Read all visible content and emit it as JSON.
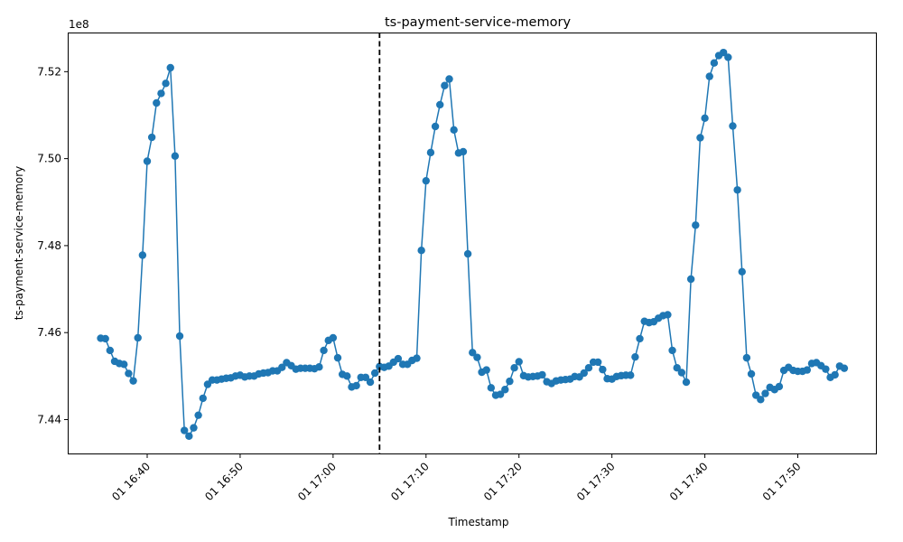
{
  "chart_data": {
    "type": "line",
    "title": "ts-payment-service-memory",
    "xlabel": "Timestamp",
    "ylabel": "ts-payment-service-memory",
    "y_offset_label": "1e8",
    "y_unit_scale": 100000000,
    "ylim": [
      7.432,
      7.529
    ],
    "xlim": [
      "2000-01-01T16:31:27",
      "2000-01-01T17:58:30"
    ],
    "y_ticks": [
      7.44,
      7.46,
      7.48,
      7.5,
      7.52
    ],
    "y_tick_labels": [
      "7.44",
      "7.46",
      "7.48",
      "7.50",
      "7.52"
    ],
    "x_ticks": [
      "2000-01-01T16:40:00",
      "2000-01-01T16:50:00",
      "2000-01-01T17:00:00",
      "2000-01-01T17:10:00",
      "2000-01-01T17:20:00",
      "2000-01-01T17:30:00",
      "2000-01-01T17:40:00",
      "2000-01-01T17:50:00"
    ],
    "x_tick_labels": [
      "01 16:40",
      "01 16:50",
      "01 17:00",
      "01 17:10",
      "01 17:20",
      "01 17:30",
      "01 17:40",
      "01 17:50"
    ],
    "vline": {
      "x": "2000-01-01T17:05:00",
      "style": "dashed",
      "color": "#000000"
    },
    "series": [
      {
        "color": "#1f77b4",
        "marker": "circle",
        "x": [
          "2000-01-01T16:35:00",
          "2000-01-01T16:35:30",
          "2000-01-01T16:36:00",
          "2000-01-01T16:36:30",
          "2000-01-01T16:37:00",
          "2000-01-01T16:37:30",
          "2000-01-01T16:38:00",
          "2000-01-01T16:38:30",
          "2000-01-01T16:39:00",
          "2000-01-01T16:39:30",
          "2000-01-01T16:40:00",
          "2000-01-01T16:40:30",
          "2000-01-01T16:41:00",
          "2000-01-01T16:41:30",
          "2000-01-01T16:42:00",
          "2000-01-01T16:42:30",
          "2000-01-01T16:43:00",
          "2000-01-01T16:43:30",
          "2000-01-01T16:44:00",
          "2000-01-01T16:44:30",
          "2000-01-01T16:45:00",
          "2000-01-01T16:45:30",
          "2000-01-01T16:46:00",
          "2000-01-01T16:46:30",
          "2000-01-01T16:47:00",
          "2000-01-01T16:47:30",
          "2000-01-01T16:48:00",
          "2000-01-01T16:48:30",
          "2000-01-01T16:49:00",
          "2000-01-01T16:49:30",
          "2000-01-01T16:50:00",
          "2000-01-01T16:50:30",
          "2000-01-01T16:51:00",
          "2000-01-01T16:51:30",
          "2000-01-01T16:52:00",
          "2000-01-01T16:52:30",
          "2000-01-01T16:53:00",
          "2000-01-01T16:53:30",
          "2000-01-01T16:54:00",
          "2000-01-01T16:54:30",
          "2000-01-01T16:55:00",
          "2000-01-01T16:55:30",
          "2000-01-01T16:56:00",
          "2000-01-01T16:56:30",
          "2000-01-01T16:57:00",
          "2000-01-01T16:57:30",
          "2000-01-01T16:58:00",
          "2000-01-01T16:58:30",
          "2000-01-01T16:59:00",
          "2000-01-01T16:59:30",
          "2000-01-01T17:00:00",
          "2000-01-01T17:00:30",
          "2000-01-01T17:01:00",
          "2000-01-01T17:01:30",
          "2000-01-01T17:02:00",
          "2000-01-01T17:02:30",
          "2000-01-01T17:03:00",
          "2000-01-01T17:03:30",
          "2000-01-01T17:04:00",
          "2000-01-01T17:04:30",
          "2000-01-01T17:05:00",
          "2000-01-01T17:05:30",
          "2000-01-01T17:06:00",
          "2000-01-01T17:06:30",
          "2000-01-01T17:07:00",
          "2000-01-01T17:07:30",
          "2000-01-01T17:08:00",
          "2000-01-01T17:08:30",
          "2000-01-01T17:09:00",
          "2000-01-01T17:09:30",
          "2000-01-01T17:10:00",
          "2000-01-01T17:10:30",
          "2000-01-01T17:11:00",
          "2000-01-01T17:11:30",
          "2000-01-01T17:12:00",
          "2000-01-01T17:12:30",
          "2000-01-01T17:13:00",
          "2000-01-01T17:13:30",
          "2000-01-01T17:14:00",
          "2000-01-01T17:14:30",
          "2000-01-01T17:15:00",
          "2000-01-01T17:15:30",
          "2000-01-01T17:16:00",
          "2000-01-01T17:16:30",
          "2000-01-01T17:17:00",
          "2000-01-01T17:17:30",
          "2000-01-01T17:18:00",
          "2000-01-01T17:18:30",
          "2000-01-01T17:19:00",
          "2000-01-01T17:19:30",
          "2000-01-01T17:20:00",
          "2000-01-01T17:20:30",
          "2000-01-01T17:21:00",
          "2000-01-01T17:21:30",
          "2000-01-01T17:22:00",
          "2000-01-01T17:22:30",
          "2000-01-01T17:23:00",
          "2000-01-01T17:23:30",
          "2000-01-01T17:24:00",
          "2000-01-01T17:24:30",
          "2000-01-01T17:25:00",
          "2000-01-01T17:25:30",
          "2000-01-01T17:26:00",
          "2000-01-01T17:26:30",
          "2000-01-01T17:27:00",
          "2000-01-01T17:27:30",
          "2000-01-01T17:28:00",
          "2000-01-01T17:28:30",
          "2000-01-01T17:29:00",
          "2000-01-01T17:29:30",
          "2000-01-01T17:30:00",
          "2000-01-01T17:30:30",
          "2000-01-01T17:31:00",
          "2000-01-01T17:31:30",
          "2000-01-01T17:32:00",
          "2000-01-01T17:32:30",
          "2000-01-01T17:33:00",
          "2000-01-01T17:33:30",
          "2000-01-01T17:34:00",
          "2000-01-01T17:34:30",
          "2000-01-01T17:35:00",
          "2000-01-01T17:35:30",
          "2000-01-01T17:36:00",
          "2000-01-01T17:36:30",
          "2000-01-01T17:37:00",
          "2000-01-01T17:37:30",
          "2000-01-01T17:38:00",
          "2000-01-01T17:38:30",
          "2000-01-01T17:39:00",
          "2000-01-01T17:39:30",
          "2000-01-01T17:40:00",
          "2000-01-01T17:40:30",
          "2000-01-01T17:41:00",
          "2000-01-01T17:41:30",
          "2000-01-01T17:42:00",
          "2000-01-01T17:42:30",
          "2000-01-01T17:43:00",
          "2000-01-01T17:43:30",
          "2000-01-01T17:44:00",
          "2000-01-01T17:44:30",
          "2000-01-01T17:45:00",
          "2000-01-01T17:45:30",
          "2000-01-01T17:46:00",
          "2000-01-01T17:46:30",
          "2000-01-01T17:47:00",
          "2000-01-01T17:47:30",
          "2000-01-01T17:48:00",
          "2000-01-01T17:48:30",
          "2000-01-01T17:49:00",
          "2000-01-01T17:49:30",
          "2000-01-01T17:50:00",
          "2000-01-01T17:50:30",
          "2000-01-01T17:51:00",
          "2000-01-01T17:51:30",
          "2000-01-01T17:52:00",
          "2000-01-01T17:52:30",
          "2000-01-01T17:53:00",
          "2000-01-01T17:53:30",
          "2000-01-01T17:54:00",
          "2000-01-01T17:54:30",
          "2000-01-01T17:55:00"
        ],
        "y": [
          7.4587,
          7.4586,
          7.4559,
          7.4534,
          7.4529,
          7.4527,
          7.4506,
          7.4489,
          7.4588,
          7.4778,
          7.4994,
          7.5049,
          7.5128,
          7.515,
          7.5173,
          7.5209,
          7.5006,
          7.4592,
          7.4375,
          7.4362,
          7.4381,
          7.441,
          7.4449,
          7.4481,
          7.4491,
          7.4491,
          7.4493,
          7.4495,
          7.4496,
          7.45,
          7.4502,
          7.4498,
          7.45,
          7.45,
          7.4505,
          7.4507,
          7.4508,
          7.4512,
          7.4512,
          7.452,
          7.4531,
          7.4524,
          7.4516,
          7.4518,
          7.4518,
          7.4518,
          7.4517,
          7.4521,
          7.4559,
          7.4582,
          7.4588,
          7.4542,
          7.4504,
          7.45,
          7.4475,
          7.4478,
          7.4497,
          7.4497,
          7.4486,
          7.4507,
          7.4522,
          7.452,
          7.4523,
          7.4532,
          7.454,
          7.4527,
          7.4527,
          7.4536,
          7.4541,
          7.4789,
          7.4949,
          7.5014,
          7.5074,
          7.5124,
          7.5168,
          7.5183,
          7.5066,
          7.5013,
          7.5016,
          7.4781,
          7.4554,
          7.4543,
          7.4509,
          7.4514,
          7.4473,
          7.4456,
          7.4458,
          7.4469,
          7.4488,
          7.4519,
          7.4533,
          7.4501,
          7.4498,
          7.4499,
          7.45,
          7.4503,
          7.4487,
          7.4483,
          7.4489,
          7.4491,
          7.4492,
          7.4493,
          7.4499,
          7.4498,
          7.4507,
          7.4519,
          7.4532,
          7.4532,
          7.4515,
          7.4494,
          7.4493,
          7.4499,
          7.4501,
          7.4502,
          7.4502,
          7.4544,
          7.4586,
          7.4626,
          7.4623,
          7.4625,
          7.4633,
          7.4639,
          7.4641,
          7.4559,
          7.4519,
          7.4508,
          7.4486,
          7.4723,
          7.4847,
          7.5048,
          7.5093,
          7.5189,
          7.522,
          7.5237,
          7.5244,
          7.5233,
          7.5075,
          7.4928,
          7.474,
          7.4542,
          7.4505,
          7.4456,
          7.4446,
          7.446,
          7.4474,
          7.4469,
          7.4476,
          7.4513,
          7.452,
          7.4513,
          7.4511,
          7.4511,
          7.4514,
          7.4529,
          7.4531,
          7.4524,
          7.4516,
          7.4497,
          7.4503,
          7.4523,
          7.4518
        ]
      }
    ]
  }
}
